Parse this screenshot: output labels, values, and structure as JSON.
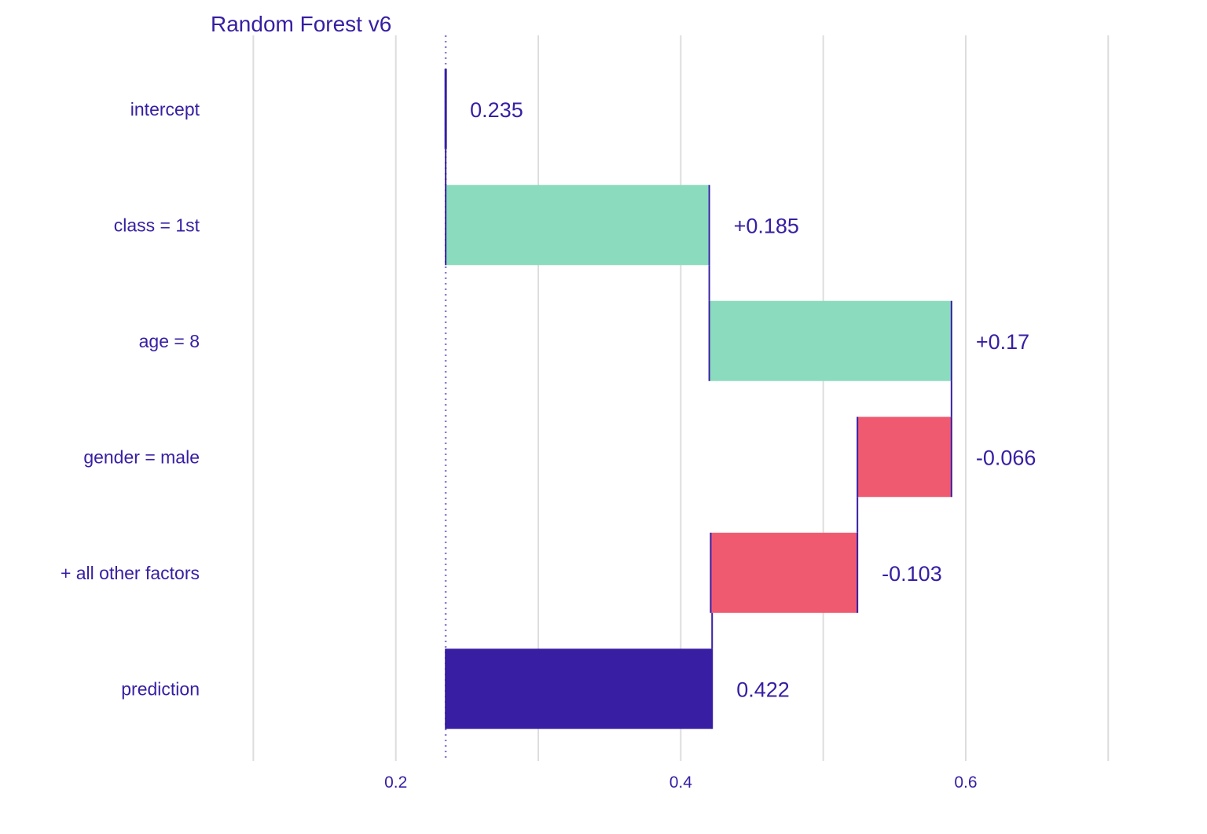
{
  "chart_data": {
    "type": "waterfall",
    "title": "Random Forest v6",
    "xlabel": "",
    "ylabel": "",
    "xlim": [
      0.07,
      0.755
    ],
    "x_ticks": [
      0.2,
      0.4,
      0.6
    ],
    "x_tick_labels": [
      "0.2",
      "0.4",
      "0.6"
    ],
    "minor_gridlines": [
      0.1,
      0.3,
      0.5,
      0.7
    ],
    "grid": true,
    "legend": "none",
    "baseline": 0.235,
    "categories": [
      "intercept",
      "class = 1st",
      "age = 8",
      "gender = male",
      "+ all other factors",
      "prediction"
    ],
    "contributions": [
      0.235,
      0.185,
      0.17,
      -0.066,
      -0.103,
      0.422
    ],
    "value_labels": [
      "0.235",
      "+0.185",
      "+0.17",
      "-0.066",
      "-0.103",
      "0.422"
    ],
    "colors": {
      "positive": "#8bdcbe",
      "negative": "#f05a71",
      "prediction": "#371ea3",
      "text": "#371ea3",
      "grid": "#dddddd"
    }
  }
}
